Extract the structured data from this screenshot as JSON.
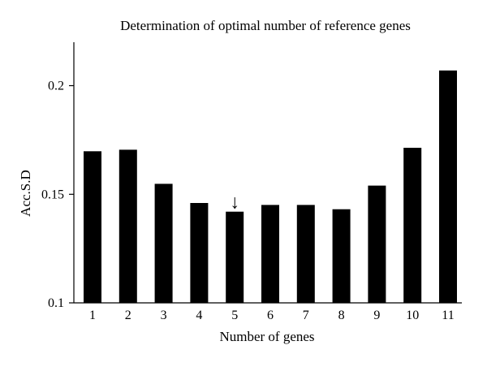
{
  "chart_data": {
    "type": "bar",
    "title": "Determination of optimal number of reference genes",
    "xlabel": "Number of genes",
    "ylabel": "Acc.S.D",
    "categories": [
      "1",
      "2",
      "3",
      "4",
      "5",
      "6",
      "7",
      "8",
      "9",
      "10",
      "11"
    ],
    "values": [
      0.1698,
      0.1705,
      0.1548,
      0.146,
      0.142,
      0.1451,
      0.1451,
      0.1431,
      0.154,
      0.1714,
      0.207
    ],
    "ylim": [
      0.1,
      0.22
    ],
    "yticks": [
      "0.1",
      "0.15",
      "0.2"
    ],
    "annotations": [
      {
        "category": "5",
        "glyph": "↓"
      }
    ],
    "grid": false,
    "bar_color": "#000000"
  }
}
